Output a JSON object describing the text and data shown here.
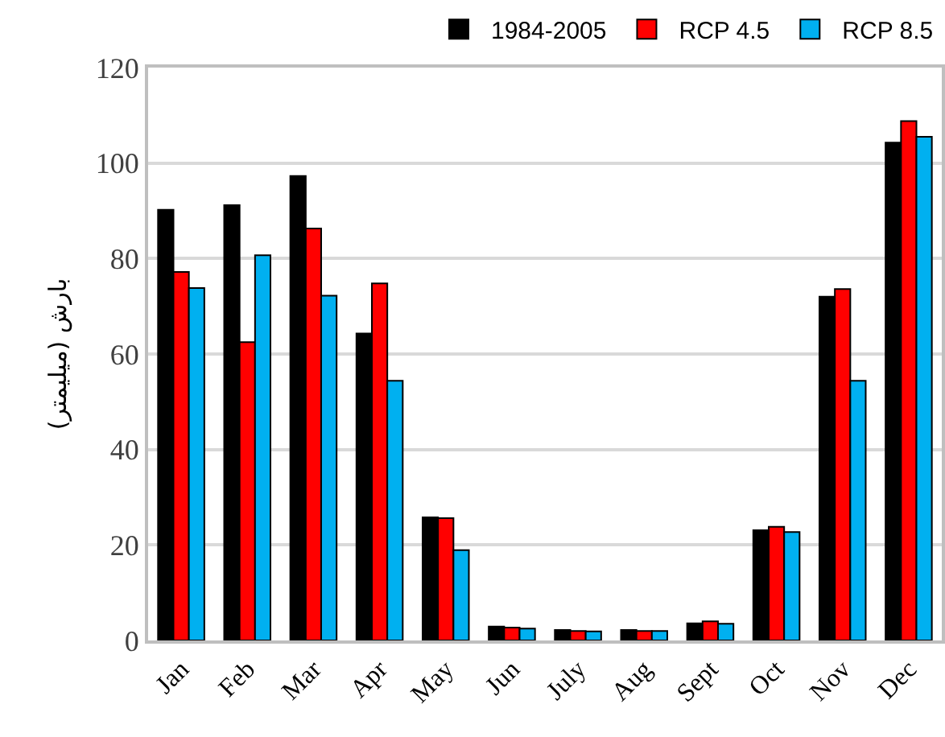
{
  "chart_data": {
    "type": "bar",
    "ylabel": "بارش (میلیمتر)",
    "categories": [
      "Jan",
      "Feb",
      "Mar",
      "Apr",
      "May",
      "Jun",
      "July",
      "Aug",
      "Sept",
      "Oct",
      "Nov",
      "Dec"
    ],
    "series": [
      {
        "name": "1984-2005",
        "color": "#000000",
        "values": [
          90.2,
          91.2,
          97.3,
          64.3,
          25.8,
          2.9,
          2.2,
          2.2,
          3.6,
          23.1,
          72.0,
          104.3
        ]
      },
      {
        "name": "RCP 4.5",
        "color": "#ff0000",
        "values": [
          77.2,
          62.5,
          86.3,
          74.8,
          25.6,
          2.7,
          2.0,
          2.0,
          4.0,
          23.8,
          73.6,
          108.8
        ]
      },
      {
        "name": "RCP 8.5",
        "color": "#00b0f0",
        "values": [
          73.8,
          80.7,
          72.2,
          54.4,
          18.9,
          2.5,
          1.9,
          2.0,
          3.5,
          22.7,
          54.4,
          105.5
        ]
      }
    ],
    "ylim": [
      0,
      120
    ],
    "yticks": [
      0,
      20,
      40,
      60,
      80,
      100,
      120
    ],
    "grid": "y",
    "legend": "top right"
  }
}
